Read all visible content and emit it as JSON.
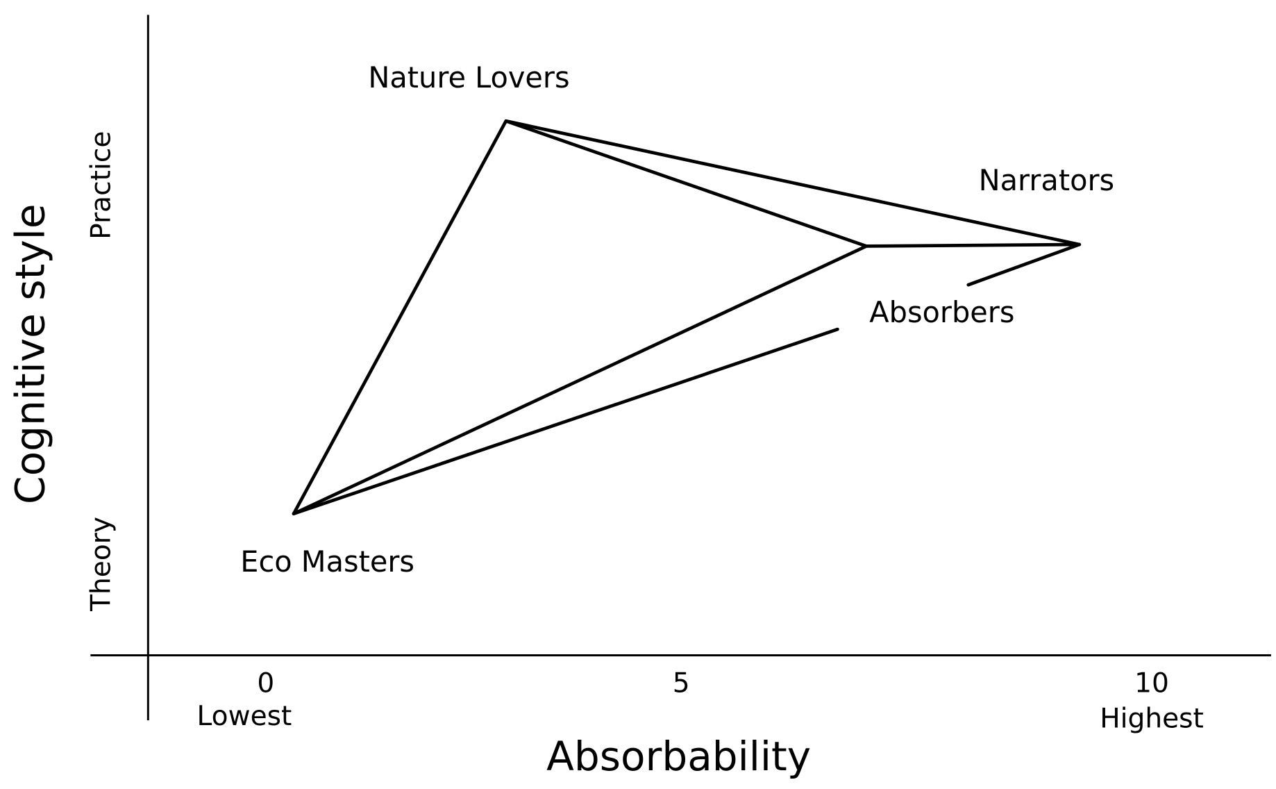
{
  "x_axis": {
    "label": "Absorbability",
    "ticks": [
      {
        "label": "0",
        "sublabel": "Lowest"
      },
      {
        "label": "5"
      },
      {
        "label": "10",
        "sublabel": "Highest"
      }
    ]
  },
  "y_axis": {
    "label": "Cognitive style",
    "ticks": [
      "Theory",
      "Practice"
    ]
  },
  "nodes": [
    {
      "label": "Nature Lovers"
    },
    {
      "label": "Narrators"
    },
    {
      "label": "Absorbers"
    },
    {
      "label": "Eco Masters"
    }
  ]
}
